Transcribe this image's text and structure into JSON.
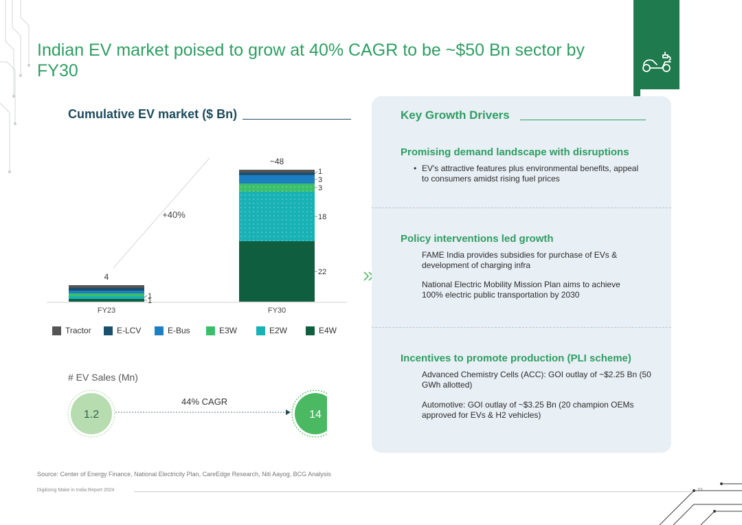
{
  "title": "Indian EV market poised to grow at 40% CAGR to be ~$50 Bn sector by FY30",
  "chart_heading": "Cumulative EV market ($ Bn)",
  "colors": {
    "accent": "#2e9e62",
    "brand_dark": "#1f7a4d",
    "heading_dark": "#1e4b5c",
    "panel_bg": "#e8eff5",
    "circle_light": "#b7dcb0",
    "circle_dark": "#4bb862"
  },
  "chart_data": {
    "type": "bar",
    "stacked": true,
    "title": "Cumulative EV market ($ Bn)",
    "xlabel": "",
    "ylabel": "$ Bn",
    "ylim": [
      0,
      48
    ],
    "categories": [
      "FY23",
      "FY30"
    ],
    "totals": [
      "4",
      "~48"
    ],
    "growth_annotation": "+40%",
    "series": [
      {
        "name": "E4W",
        "color": "#0f5e3f",
        "values": [
          1,
          22
        ],
        "labels": [
          "1",
          "22"
        ]
      },
      {
        "name": "E2W",
        "color": "#18b1b5",
        "values": [
          1,
          18
        ],
        "labels": [
          "1",
          "18"
        ]
      },
      {
        "name": "E3W",
        "color": "#3cbf6a",
        "values": [
          1,
          3
        ],
        "labels": [
          "",
          "3"
        ]
      },
      {
        "name": "E-Bus",
        "color": "#1c7fc2",
        "values": [
          0.5,
          3
        ],
        "labels": [
          "",
          "3"
        ]
      },
      {
        "name": "E-LCV",
        "color": "#1a4f6e",
        "values": [
          0.3,
          1
        ],
        "labels": [
          "",
          "1"
        ]
      },
      {
        "name": "Tractor",
        "color": "#555555",
        "values": [
          0.2,
          1
        ],
        "labels": [
          "",
          ""
        ]
      }
    ],
    "legend_order": [
      "Tractor",
      "E-LCV",
      "E-Bus",
      "E3W",
      "E2W",
      "E4W"
    ]
  },
  "ev_sales": {
    "label": "# EV Sales (Mn)",
    "fy23_value": "1.2",
    "fy30_value": "14",
    "cagr_label": "44% CAGR"
  },
  "drivers": {
    "heading": "Key Growth Drivers",
    "items": [
      {
        "title": "Promising demand landscape with disruptions",
        "points": [
          "EV's attractive features plus environmental benefits, appeal to consumers amidst rising fuel prices"
        ]
      },
      {
        "title": "Policy interventions led growth",
        "points": [
          "FAME India provides subsidies for purchase of EVs & development of charging infra",
          "National Electric Mobility Mission Plan aims to achieve 100% electric public transportation by 2030"
        ]
      },
      {
        "title": "Incentives to promote production (PLI scheme)",
        "points": [
          "Advanced Chemistry Cells (ACC): GOI outlay of ~$2.25 Bn (50 GWh allotted)",
          "Automotive: GOI outlay of ~$3.25 Bn (20 champion OEMs approved for EVs & H2 vehicles)"
        ]
      }
    ]
  },
  "source": "Source: Center of Energy Finance, National Electricity Plan, CareEdge Research, Niti Aayog, BCG Analysis",
  "footer": {
    "report": "Digitizing Make in India Report 2024",
    "page": "33"
  }
}
